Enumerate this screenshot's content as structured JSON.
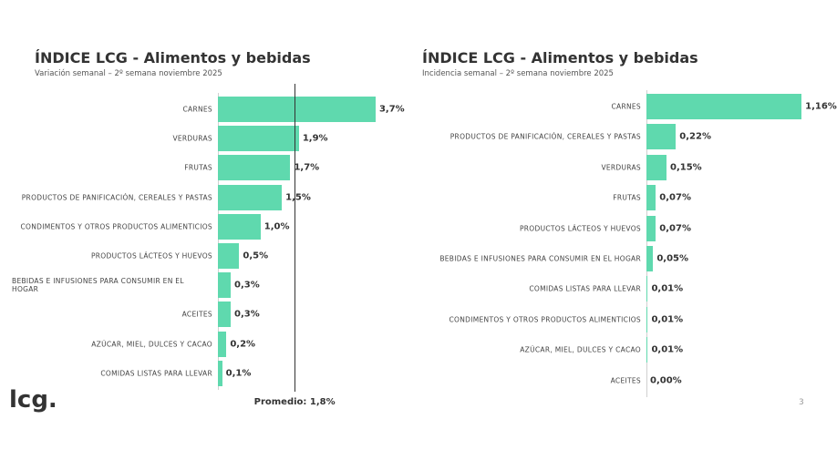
{
  "chart_data": [
    {
      "type": "bar",
      "orientation": "horizontal",
      "title": "ÍNDICE LCG - Alimentos y bebidas",
      "subtitle": "Variación semanal – 2º semana noviembre 2025",
      "categories": [
        "CARNES",
        "VERDURAS",
        "FRUTAS",
        "PRODUCTOS DE PANIFICACIÓN, CEREALES Y PASTAS",
        "CONDIMENTOS Y OTROS PRODUCTOS ALIMENTICIOS",
        "PRODUCTOS LÁCTEOS Y HUEVOS",
        "BEBIDAS E INFUSIONES PARA CONSUMIR EN EL HOGAR",
        "ACEITES",
        "AZÚCAR, MIEL, DULCES Y CACAO",
        "COMIDAS LISTAS PARA LLEVAR"
      ],
      "values": [
        3.7,
        1.9,
        1.7,
        1.5,
        1.0,
        0.5,
        0.3,
        0.3,
        0.2,
        0.1
      ],
      "value_labels": [
        "3,7%",
        "1,9%",
        "1,7%",
        "1,5%",
        "1,0%",
        "0,5%",
        "0,3%",
        "0,3%",
        "0,2%",
        "0,1%"
      ],
      "color": "#5fd9ae",
      "xlim": [
        0,
        4
      ],
      "reference_line": {
        "value": 1.8,
        "label": "Promedio: 1,8%"
      }
    },
    {
      "type": "bar",
      "orientation": "horizontal",
      "title": "ÍNDICE LCG - Alimentos y bebidas",
      "subtitle": "Incidencia semanal – 2º semana noviembre 2025",
      "categories": [
        "CARNES",
        "PRODUCTOS DE PANIFICACIÓN, CEREALES Y PASTAS",
        "VERDURAS",
        "FRUTAS",
        "PRODUCTOS LÁCTEOS Y HUEVOS",
        "BEBIDAS E INFUSIONES PARA CONSUMIR EN EL HOGAR",
        "COMIDAS LISTAS PARA LLEVAR",
        "CONDIMENTOS Y OTROS PRODUCTOS ALIMENTICIOS",
        "AZÚCAR, MIEL, DULCES Y CACAO",
        "ACEITES"
      ],
      "values": [
        1.16,
        0.22,
        0.15,
        0.07,
        0.07,
        0.05,
        0.01,
        0.01,
        0.01,
        0.0
      ],
      "value_labels": [
        "1,16%",
        "0,22%",
        "0,15%",
        "0,07%",
        "0,07%",
        "0,05%",
        "0,01%",
        "0,01%",
        "0,01%",
        "0,00%"
      ],
      "color": "#5fd9ae",
      "xlim": [
        0,
        1.2
      ]
    }
  ],
  "logo": "lcg.",
  "page_number": 3
}
